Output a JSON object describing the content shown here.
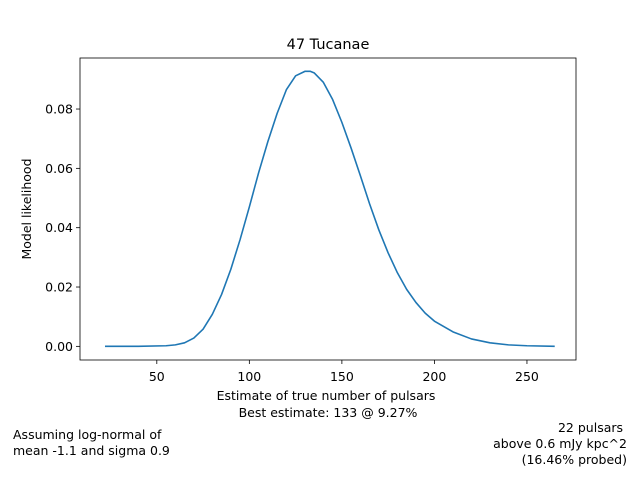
{
  "chart_data": {
    "type": "line",
    "title": "47 Tucanae",
    "xlabel": "Estimate of true number of pulsars",
    "xlabel_sub": "Best estimate: 133 @ 9.27%",
    "ylabel": "Model likelihood",
    "xlim": [
      8.5,
      276.5
    ],
    "ylim": [
      -0.0046,
      0.0972
    ],
    "xticks": [
      50,
      100,
      150,
      200,
      250
    ],
    "yticks": [
      0.0,
      0.02,
      0.04,
      0.06,
      0.08
    ],
    "ytick_labels": [
      "0.00",
      "0.02",
      "0.04",
      "0.06",
      "0.08"
    ],
    "grid": false,
    "line_color": "#1f77b4",
    "series": [
      {
        "x": [
          22,
          40,
          55,
          60,
          65,
          70,
          75,
          80,
          85,
          90,
          95,
          100,
          105,
          110,
          115,
          120,
          125,
          130,
          133,
          135,
          140,
          145,
          150,
          155,
          160,
          165,
          170,
          175,
          180,
          185,
          190,
          195,
          200,
          210,
          220,
          230,
          240,
          250,
          265
        ],
        "y": [
          0.0,
          0.0,
          0.0002,
          0.0005,
          0.0012,
          0.0028,
          0.0058,
          0.0108,
          0.0175,
          0.026,
          0.036,
          0.047,
          0.0585,
          0.069,
          0.0785,
          0.0865,
          0.0912,
          0.0927,
          0.0927,
          0.0922,
          0.089,
          0.0832,
          0.0755,
          0.0668,
          0.0575,
          0.048,
          0.0392,
          0.0315,
          0.0248,
          0.0192,
          0.0148,
          0.0112,
          0.0085,
          0.0049,
          0.0025,
          0.0012,
          0.0005,
          0.0002,
          0.0
        ]
      }
    ]
  },
  "notes": {
    "left": "Assuming log-normal of\nmean -1.1 and sigma 0.9",
    "right": "22 pulsars \nabove 0.6 mJy kpc^2\n(16.46% probed)"
  }
}
